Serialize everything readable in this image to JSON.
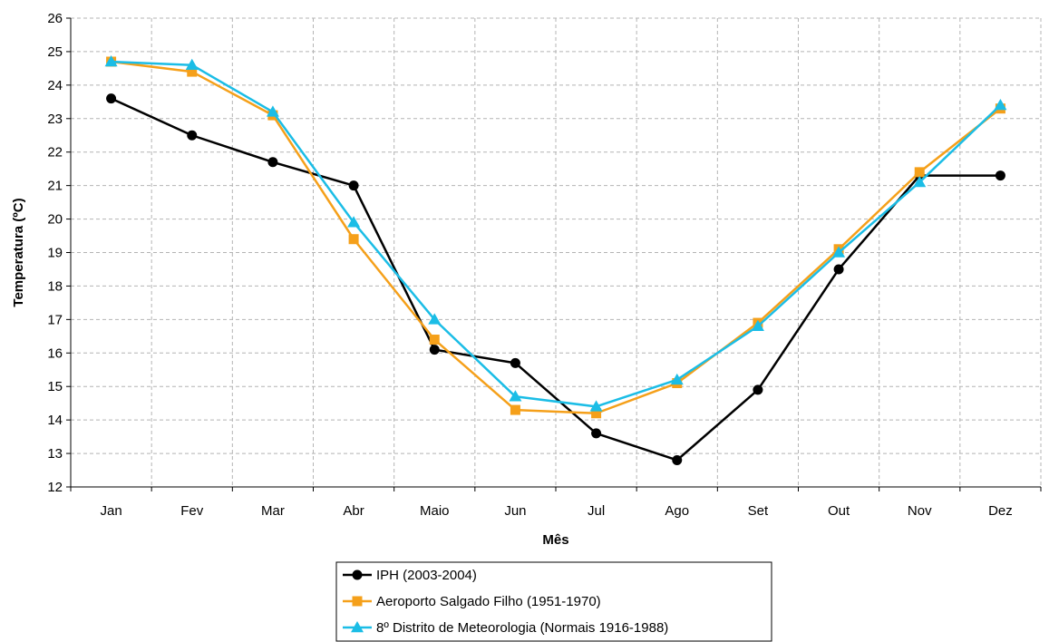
{
  "chart_data": {
    "type": "line",
    "title": "",
    "xlabel": "Mês",
    "ylabel": "Temperatura (ºC)",
    "categories": [
      "Jan",
      "Fev",
      "Mar",
      "Abr",
      "Maio",
      "Jun",
      "Jul",
      "Ago",
      "Set",
      "Out",
      "Nov",
      "Dez"
    ],
    "ylim": [
      12,
      26
    ],
    "yticks": [
      12,
      13,
      14,
      15,
      16,
      17,
      18,
      19,
      20,
      21,
      22,
      23,
      24,
      25,
      26
    ],
    "grid": true,
    "legend_position": "bottom",
    "series": [
      {
        "name": "IPH (2003-2004)",
        "color": "#000000",
        "marker": "circle",
        "values": [
          23.6,
          22.5,
          21.7,
          21.0,
          16.1,
          15.7,
          13.6,
          12.8,
          14.9,
          18.5,
          21.3,
          21.3
        ]
      },
      {
        "name": "Aeroporto Salgado Filho (1951-1970)",
        "color": "#F5A01A",
        "marker": "square",
        "values": [
          24.7,
          24.4,
          23.1,
          19.4,
          16.4,
          14.3,
          14.2,
          15.1,
          16.9,
          19.1,
          21.4,
          23.3
        ]
      },
      {
        "name": "8º Distrito de Meteorologia (Normais 1916-1988)",
        "color": "#1BBDE6",
        "marker": "triangle",
        "values": [
          24.7,
          24.6,
          23.2,
          19.9,
          17.0,
          14.7,
          14.4,
          15.2,
          16.8,
          19.0,
          21.1,
          23.4
        ]
      }
    ]
  }
}
